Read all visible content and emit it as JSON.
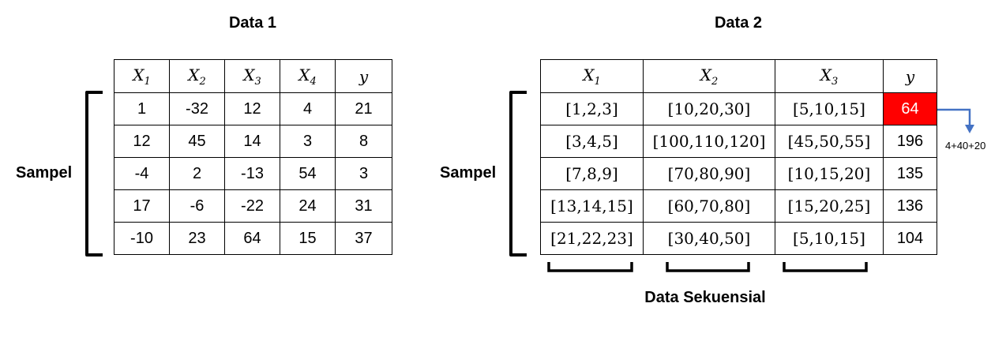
{
  "data1": {
    "title": "Data 1",
    "side_label": "Sampel",
    "headers": [
      {
        "base": "X",
        "sub": "1"
      },
      {
        "base": "X",
        "sub": "2"
      },
      {
        "base": "X",
        "sub": "3"
      },
      {
        "base": "X",
        "sub": "4"
      },
      {
        "base": "y",
        "sub": ""
      }
    ],
    "rows": [
      [
        "1",
        "-32",
        "12",
        "4",
        "21"
      ],
      [
        "12",
        "45",
        "14",
        "3",
        "8"
      ],
      [
        "-4",
        "2",
        "-13",
        "54",
        "3"
      ],
      [
        "17",
        "-6",
        "-22",
        "24",
        "31"
      ],
      [
        "-10",
        "23",
        "64",
        "15",
        "37"
      ]
    ]
  },
  "data2": {
    "title": "Data 2",
    "side_label": "Sampel",
    "headers": [
      {
        "base": "X",
        "sub": "1"
      },
      {
        "base": "X",
        "sub": "2"
      },
      {
        "base": "X",
        "sub": "3"
      },
      {
        "base": "y",
        "sub": ""
      }
    ],
    "rows": [
      [
        "[1,2,3]",
        "[10,20,30]",
        "[5,10,15]",
        "64"
      ],
      [
        "[3,4,5]",
        "[100,110,120]",
        "[45,50,55]",
        "196"
      ],
      [
        "[7,8,9]",
        "[70,80,90]",
        "[10,15,20]",
        "135"
      ],
      [
        "[13,14,15]",
        "[60,70,80]",
        "[15,20,25]",
        "136"
      ],
      [
        "[21,22,23]",
        "[30,40,50]",
        "[5,10,15]",
        "104"
      ]
    ],
    "highlight_color": "#ff0000",
    "arrow_color": "#4472c4",
    "sum_note": "4+40+20",
    "bottom_label": "Data Sekuensial"
  }
}
